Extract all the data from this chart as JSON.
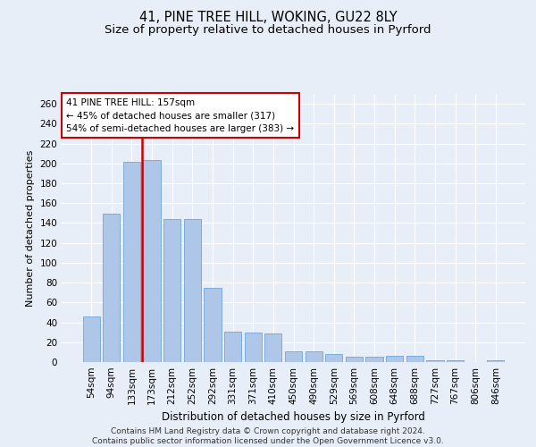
{
  "title1": "41, PINE TREE HILL, WOKING, GU22 8LY",
  "title2": "Size of property relative to detached houses in Pyrford",
  "xlabel": "Distribution of detached houses by size in Pyrford",
  "ylabel": "Number of detached properties",
  "categories": [
    "54sqm",
    "94sqm",
    "133sqm",
    "173sqm",
    "212sqm",
    "252sqm",
    "292sqm",
    "331sqm",
    "371sqm",
    "410sqm",
    "450sqm",
    "490sqm",
    "529sqm",
    "569sqm",
    "608sqm",
    "648sqm",
    "688sqm",
    "727sqm",
    "767sqm",
    "806sqm",
    "846sqm"
  ],
  "values": [
    46,
    149,
    202,
    203,
    144,
    144,
    75,
    31,
    30,
    29,
    11,
    11,
    8,
    5,
    5,
    6,
    6,
    2,
    2,
    0,
    2
  ],
  "bar_color": "#aec6e8",
  "bar_edge_color": "#5b9bd5",
  "vline_color": "#cc0000",
  "vline_pos": 2.5,
  "annotation_text": "41 PINE TREE HILL: 157sqm\n← 45% of detached houses are smaller (317)\n54% of semi-detached houses are larger (383) →",
  "annotation_box_color": "white",
  "annotation_box_edge_color": "#cc0000",
  "ylim": [
    0,
    270
  ],
  "yticks": [
    0,
    20,
    40,
    60,
    80,
    100,
    120,
    140,
    160,
    180,
    200,
    220,
    240,
    260
  ],
  "background_color": "#e8eef8",
  "grid_color": "white",
  "footer_text": "Contains HM Land Registry data © Crown copyright and database right 2024.\nContains public sector information licensed under the Open Government Licence v3.0.",
  "title1_fontsize": 10.5,
  "title2_fontsize": 9.5,
  "xlabel_fontsize": 8.5,
  "ylabel_fontsize": 8,
  "tick_fontsize": 7.5,
  "annotation_fontsize": 7.5,
  "footer_fontsize": 6.5
}
